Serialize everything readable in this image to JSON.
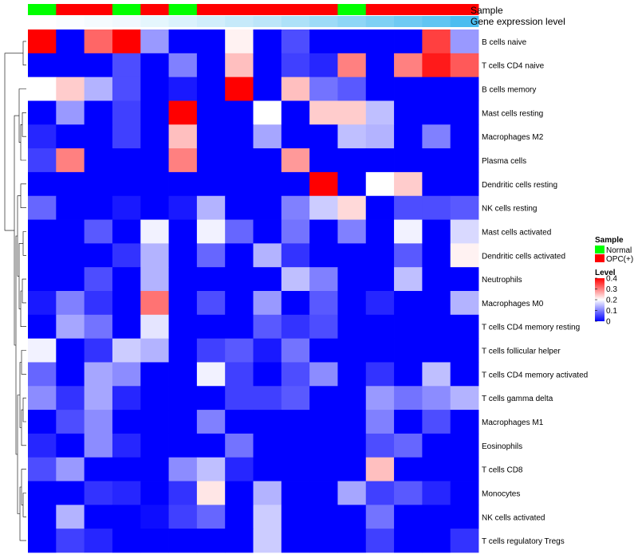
{
  "chart_data": {
    "type": "heatmap",
    "annotations": {
      "sample_label": "Sample",
      "gene_label": "Gene expression level"
    },
    "columns": [
      {
        "sample": "Normal",
        "gene_level": 0.0
      },
      {
        "sample": "OPC(+)",
        "gene_level": 0.01
      },
      {
        "sample": "OPC(+)",
        "gene_level": 0.02
      },
      {
        "sample": "Normal",
        "gene_level": 0.03
      },
      {
        "sample": "OPC(+)",
        "gene_level": 0.05
      },
      {
        "sample": "Normal",
        "gene_level": 0.07
      },
      {
        "sample": "OPC(+)",
        "gene_level": 0.09
      },
      {
        "sample": "OPC(+)",
        "gene_level": 0.11
      },
      {
        "sample": "OPC(+)",
        "gene_level": 0.13
      },
      {
        "sample": "OPC(+)",
        "gene_level": 0.16
      },
      {
        "sample": "OPC(+)",
        "gene_level": 0.19
      },
      {
        "sample": "Normal",
        "gene_level": 0.22
      },
      {
        "sample": "OPC(+)",
        "gene_level": 0.25
      },
      {
        "sample": "OPC(+)",
        "gene_level": 0.28
      },
      {
        "sample": "OPC(+)",
        "gene_level": 0.31
      },
      {
        "sample": "OPC(+)",
        "gene_level": 0.35
      }
    ],
    "rows": [
      "B cells naive",
      "T cells CD4 naive",
      "B cells memory",
      "Mast cells resting",
      "Macrophages M2",
      "Plasma cells",
      "Dendritic cells resting",
      "NK cells resting",
      "Mast cells activated",
      "Dendritic cells activated",
      "Neutrophils",
      "Macrophages M0",
      "T cells CD4 memory resting",
      "T cells follicular helper",
      "T cells CD4 memory activated",
      "T cells gamma delta",
      "Macrophages M1",
      "Eosinophils",
      "T cells CD8",
      "Monocytes",
      "NK cells activated",
      "T cells regulatory  Tregs"
    ],
    "values": [
      [
        0.4,
        0.0,
        0.32,
        0.4,
        0.12,
        0.0,
        0.0,
        0.21,
        0.0,
        0.06,
        0.0,
        0.0,
        0.0,
        0.0,
        0.35,
        0.12
      ],
      [
        0.0,
        0.0,
        0.0,
        0.06,
        0.0,
        0.1,
        0.0,
        0.25,
        0.0,
        0.05,
        0.03,
        0.3,
        0.0,
        0.3,
        0.38,
        0.33
      ],
      [
        0.2,
        0.24,
        0.14,
        0.06,
        0.0,
        0.02,
        0.0,
        0.4,
        0.0,
        0.25,
        0.09,
        0.07,
        0.0,
        0.0,
        0.0,
        0.0
      ],
      [
        0.0,
        0.12,
        0.0,
        0.05,
        0.0,
        0.4,
        0.0,
        0.0,
        0.2,
        0.0,
        0.24,
        0.24,
        0.15,
        0.0,
        0.0,
        0.0
      ],
      [
        0.03,
        0.0,
        0.0,
        0.05,
        0.0,
        0.25,
        0.0,
        0.0,
        0.13,
        0.0,
        0.0,
        0.15,
        0.14,
        0.0,
        0.1,
        0.0
      ],
      [
        0.05,
        0.3,
        0.0,
        0.0,
        0.0,
        0.3,
        0.0,
        0.0,
        0.0,
        0.28,
        0.0,
        0.0,
        0.0,
        0.0,
        0.0,
        0.0
      ],
      [
        0.0,
        0.0,
        0.0,
        0.0,
        0.0,
        0.0,
        0.0,
        0.0,
        0.0,
        0.0,
        0.4,
        0.0,
        0.2,
        0.24,
        0.0,
        0.0
      ],
      [
        0.08,
        0.0,
        0.0,
        0.02,
        0.0,
        0.02,
        0.14,
        0.0,
        0.0,
        0.1,
        0.16,
        0.23,
        0.0,
        0.06,
        0.06,
        0.07
      ],
      [
        0.0,
        0.0,
        0.07,
        0.0,
        0.19,
        0.0,
        0.19,
        0.08,
        0.0,
        0.09,
        0.0,
        0.1,
        0.0,
        0.19,
        0.0,
        0.17
      ],
      [
        0.0,
        0.0,
        0.0,
        0.04,
        0.14,
        0.0,
        0.08,
        0.0,
        0.14,
        0.04,
        0.0,
        0.0,
        0.0,
        0.07,
        0.0,
        0.21
      ],
      [
        0.0,
        0.0,
        0.06,
        0.0,
        0.14,
        0.0,
        0.0,
        0.0,
        0.0,
        0.15,
        0.1,
        0.0,
        0.0,
        0.15,
        0.0,
        0.0
      ],
      [
        0.02,
        0.1,
        0.04,
        0.0,
        0.31,
        0.0,
        0.06,
        0.0,
        0.12,
        0.0,
        0.07,
        0.0,
        0.03,
        0.0,
        0.0,
        0.14
      ],
      [
        0.0,
        0.13,
        0.09,
        0.0,
        0.18,
        0.0,
        0.0,
        0.0,
        0.07,
        0.04,
        0.06,
        0.0,
        0.0,
        0.0,
        0.0,
        0.0
      ],
      [
        0.19,
        0.0,
        0.04,
        0.16,
        0.14,
        0.0,
        0.05,
        0.07,
        0.02,
        0.09,
        0.0,
        0.0,
        0.0,
        0.0,
        0.0,
        0.0
      ],
      [
        0.08,
        0.0,
        0.13,
        0.11,
        0.0,
        0.0,
        0.19,
        0.05,
        0.0,
        0.06,
        0.11,
        0.0,
        0.04,
        0.0,
        0.15,
        0.0
      ],
      [
        0.11,
        0.04,
        0.13,
        0.03,
        0.0,
        0.0,
        0.0,
        0.05,
        0.05,
        0.07,
        0.0,
        0.0,
        0.12,
        0.09,
        0.11,
        0.14
      ],
      [
        0.0,
        0.06,
        0.11,
        0.0,
        0.0,
        0.0,
        0.1,
        0.0,
        0.0,
        0.0,
        0.0,
        0.0,
        0.1,
        0.0,
        0.06,
        0.0
      ],
      [
        0.03,
        0.0,
        0.11,
        0.03,
        0.0,
        0.0,
        0.0,
        0.09,
        0.0,
        0.0,
        0.0,
        0.0,
        0.06,
        0.08,
        0.0,
        0.0
      ],
      [
        0.06,
        0.12,
        0.0,
        0.0,
        0.0,
        0.11,
        0.15,
        0.03,
        0.0,
        0.0,
        0.0,
        0.0,
        0.25,
        0.0,
        0.0,
        0.0
      ],
      [
        0.0,
        0.0,
        0.04,
        0.03,
        0.0,
        0.04,
        0.22,
        0.0,
        0.14,
        0.0,
        0.0,
        0.13,
        0.05,
        0.07,
        0.03,
        0.0
      ],
      [
        0.0,
        0.14,
        0.0,
        0.0,
        0.01,
        0.05,
        0.08,
        0.0,
        0.16,
        0.0,
        0.0,
        0.0,
        0.09,
        0.0,
        0.0,
        0.0
      ],
      [
        0.0,
        0.05,
        0.03,
        0.0,
        0.0,
        0.0,
        0.0,
        0.0,
        0.16,
        0.0,
        0.0,
        0.0,
        0.05,
        0.0,
        0.0,
        0.04
      ]
    ],
    "color_scale": {
      "min": 0,
      "max": 0.4,
      "low_color": "#0000ff",
      "mid_color": "#ffffff",
      "high_color": "#ff0000",
      "mid_value": 0.2
    },
    "legend": {
      "sample": {
        "title": "Sample",
        "items": [
          {
            "label": "Normal",
            "color": "#00ff00"
          },
          {
            "label": "OPC(+)",
            "color": "#ff0000"
          }
        ]
      },
      "level": {
        "title": "Level",
        "ticks": [
          "0.4",
          "0.3",
          "0.2",
          "0.1",
          "0"
        ]
      }
    },
    "gene_annotation_colors": {
      "low": "#ffffff",
      "high": "#4bbdf0"
    },
    "row_dendrogram": true,
    "legend_placement": "right"
  }
}
